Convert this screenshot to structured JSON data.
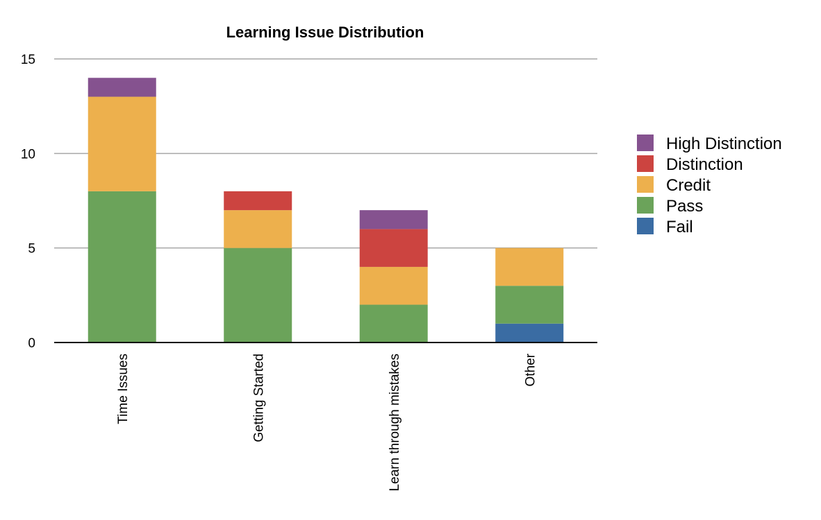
{
  "chart_data": {
    "type": "bar",
    "stacked": true,
    "title": "Learning Issue Distribution",
    "xlabel": "",
    "ylabel": "",
    "categories": [
      "Time Issues",
      "Getting Started",
      "Learn through mistakes",
      "Other"
    ],
    "ylim": [
      0,
      15
    ],
    "yticks": [
      0,
      5,
      10,
      15
    ],
    "grid": true,
    "legend_position": "right",
    "series": [
      {
        "name": "Fail",
        "color": "#3a6ca3",
        "values": [
          0,
          0,
          0,
          1
        ]
      },
      {
        "name": "Pass",
        "color": "#6ba35a",
        "values": [
          8,
          5,
          2,
          2
        ]
      },
      {
        "name": "Credit",
        "color": "#edb04d",
        "values": [
          5,
          2,
          2,
          2
        ]
      },
      {
        "name": "Distinction",
        "color": "#cc4440",
        "values": [
          0,
          1,
          2,
          0
        ]
      },
      {
        "name": "High Distinction",
        "color": "#85528f",
        "values": [
          1,
          0,
          1,
          0
        ]
      }
    ]
  }
}
